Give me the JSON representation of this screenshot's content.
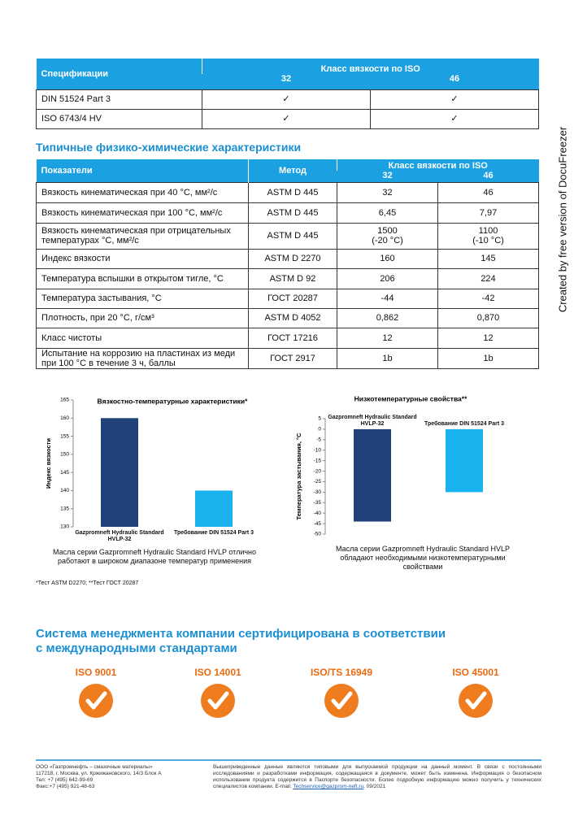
{
  "watermark": "Created by free version of DocuFreezer",
  "spec_table": {
    "header": {
      "label": "Спецификации",
      "group": "Класс вязкости по ISO",
      "grades": [
        "32",
        "46"
      ]
    },
    "rows": [
      [
        "DIN 51524 Part 3",
        "✓",
        "✓"
      ],
      [
        "ISO 6743/4 HV",
        "✓",
        "✓"
      ]
    ]
  },
  "props_title": "Типичные физико-химические характеристики",
  "props_table": {
    "header": {
      "label": "Показатели",
      "method": "Метод",
      "group": "Класс вязкости по ISO",
      "grades": [
        "32",
        "46"
      ]
    },
    "rows": [
      [
        "Вязкость кинематическая при 40 °С, мм²/с",
        "ASTM D 445",
        "32",
        "46"
      ],
      [
        "Вязкость кинематическая при 100 °С, мм²/с",
        "ASTM D 445",
        "6,45",
        "7,97"
      ],
      [
        "Вязкость кинематическая при отрицательных температурах °С, мм²/с",
        "ASTM D 445",
        [
          "1500",
          "(-20 °С)"
        ],
        [
          "1100",
          "(-10 °С)"
        ]
      ],
      [
        "Индекс вязкости",
        "ASTM D 2270",
        "160",
        "145"
      ],
      [
        "Температура вспышки в открытом тигле, °С",
        "ASTM D 92",
        "206",
        "224"
      ],
      [
        "Температура застывания, °С",
        "ГОСТ 20287",
        "-44",
        "-42"
      ],
      [
        "Плотность, при 20 °С, г/см³",
        "ASTM D 4052",
        "0,862",
        "0,870"
      ],
      [
        "Класс чистоты",
        "ГОСТ 17216",
        "12",
        "12"
      ],
      [
        "Испытание на коррозию на пластинах из меди при 100 °С в течение 3 ч, баллы",
        "ГОСТ 2917",
        "1b",
        "1b"
      ]
    ]
  },
  "chart_data": [
    {
      "type": "bar",
      "title": "Вязкостно-температурные характеристики*",
      "ylabel": "Индекс вязкости",
      "categories": [
        "Gazpromneft Hydraulic Standard HVLP-32",
        "Требование DIN 51524 Part 3"
      ],
      "values": [
        160,
        140
      ],
      "colors": [
        "#1f4378",
        "#19b2ee"
      ],
      "ylim": [
        130,
        165
      ],
      "yticks": [
        130,
        135,
        140,
        145,
        150,
        155,
        160,
        165
      ]
    },
    {
      "type": "bar",
      "title": "Низкотемпературные свойства**",
      "ylabel": "Температура застывания, °С",
      "categories": [
        "Gazpromneft Hydraulic Standard HVLP-32",
        "Требование DIN 51524 Part 3"
      ],
      "values": [
        -44,
        -30
      ],
      "colors": [
        "#1f4378",
        "#19b2ee"
      ],
      "ylim": [
        -50,
        5
      ],
      "yticks": [
        5,
        0,
        -5,
        -10,
        -15,
        -20,
        -25,
        -30,
        -35,
        -40,
        -45,
        -50
      ]
    }
  ],
  "captions": [
    "Масла серии Gazpromneft Hydraulic Standard HVLP отлично работают в широком диапазоне температур применения",
    "Масла серии Gazpromneft Hydraulic Standard HVLP обладают необходимыми низкотемпературными свойствами"
  ],
  "footnote": "*Тест ASTM D2270; **Тест ГОСТ 20287",
  "cert_title": [
    "Система менеджмента компании сертифицирована в соответствии",
    "с международными стандартами"
  ],
  "certs": [
    "ISO 9001",
    "ISO 14001",
    "ISO/TS 16949",
    "ISO 45001"
  ],
  "footer": {
    "address": [
      "ООО «Газпромнефть – смазочные материалы»",
      "117218, г. Москва, ул. Кржижановского, 14/3 Блок А",
      "Тел: +7 (495) 642-99-69",
      "Факс:+7 (495) 921-48-63"
    ],
    "disclaimer": "Вышеприведенные данные являются типовыми для выпускаемой продукции на данный момент. В связи с постоянными исследованиями и разработками информация, содержащаяся в документе, может быть изменена. Информация о безопасном использовании продукта содержится в Паспорте безопасности. Более подробную информацию можно получить у технических специалистов компании. E-mail: ",
    "email": "Techservice@gazprom-neft.ru",
    "date": ". 09/2021"
  }
}
